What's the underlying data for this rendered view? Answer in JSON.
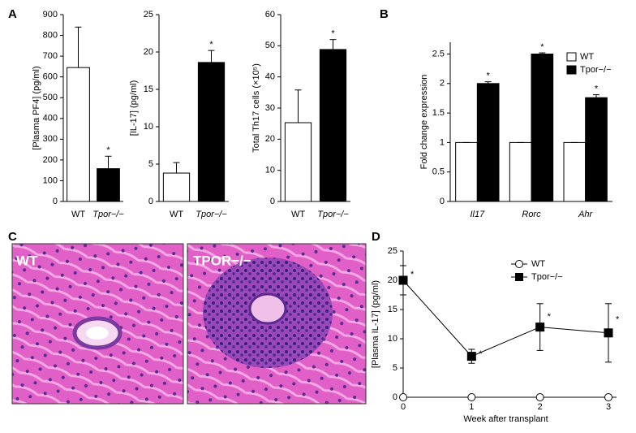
{
  "panel_labels": [
    "A",
    "B",
    "C",
    "D"
  ],
  "micrographs": {
    "labels": [
      "WT",
      "TPOR−/−"
    ]
  },
  "chart_data": [
    {
      "type": "bar",
      "y_label": "[Plasma PF4] (pg/ml)",
      "categories": [
        "WT",
        "Tpor−/−"
      ],
      "values": [
        645,
        158
      ],
      "errors": [
        195,
        60
      ],
      "colors": [
        "#ffffff",
        "#000000"
      ],
      "significant": [
        false,
        true
      ],
      "significance_mark": "*",
      "ylim": [
        0,
        900
      ],
      "yticks": [
        0,
        100,
        200,
        300,
        400,
        500,
        600,
        700,
        800,
        900
      ]
    },
    {
      "type": "bar",
      "y_label": "[IL-17] (pg/ml)",
      "categories": [
        "WT",
        "Tpor−/−"
      ],
      "values": [
        3.8,
        18.6
      ],
      "errors": [
        1.4,
        1.6
      ],
      "colors": [
        "#ffffff",
        "#000000"
      ],
      "significant": [
        false,
        true
      ],
      "significance_mark": "*",
      "ylim": [
        0,
        25
      ],
      "yticks": [
        0,
        5,
        10,
        15,
        20,
        25
      ]
    },
    {
      "type": "bar",
      "y_label": "Total Th17 cells (×10⁵)",
      "categories": [
        "WT",
        "Tpor−/−"
      ],
      "values": [
        25.3,
        48.8
      ],
      "errors": [
        10.5,
        3.2
      ],
      "colors": [
        "#ffffff",
        "#000000"
      ],
      "significant": [
        false,
        true
      ],
      "significance_mark": "*",
      "ylim": [
        0,
        60
      ],
      "yticks": [
        0,
        10,
        20,
        30,
        40,
        50,
        60
      ]
    },
    {
      "type": "grouped-bar",
      "y_label": "Fold change expression",
      "categories": [
        "Il17",
        "Rorc",
        "Ahr"
      ],
      "series": [
        {
          "name": "WT",
          "color": "#ffffff",
          "values": [
            1,
            1,
            1
          ],
          "errors": [
            0,
            0,
            0
          ],
          "significant": [
            false,
            false,
            false
          ]
        },
        {
          "name": "Tpor−/−",
          "color": "#000000",
          "values": [
            2.0,
            2.5,
            1.76
          ],
          "errors": [
            0.03,
            0.02,
            0.05
          ],
          "significant": [
            true,
            true,
            true
          ]
        }
      ],
      "significance_mark": "*",
      "ylim": [
        0,
        2.7
      ],
      "yticks": [
        0,
        0.5,
        1,
        1.5,
        2,
        2.5
      ]
    },
    {
      "type": "line",
      "x_label": "Week after transplant",
      "y_label": "[Plasma IL-17] (pg/ml)",
      "x": [
        0,
        1,
        2,
        3
      ],
      "series": [
        {
          "name": "WT",
          "color": "#ffffff",
          "marker": "circle",
          "values": [
            0,
            0,
            0,
            0
          ],
          "errors": [
            0,
            0,
            0,
            0
          ],
          "significant": [
            false,
            false,
            false,
            false
          ]
        },
        {
          "name": "Tpor−/−",
          "color": "#000000",
          "marker": "square",
          "values": [
            20,
            7,
            12,
            11
          ],
          "errors": [
            2.5,
            1.2,
            4,
            5
          ],
          "significant": [
            true,
            true,
            true,
            true
          ]
        }
      ],
      "significance_mark": "*",
      "xlim": [
        0,
        3
      ],
      "xticks": [
        0,
        1,
        2,
        3
      ],
      "ylim": [
        0,
        25
      ],
      "yticks": [
        0,
        5,
        10,
        15,
        20,
        25
      ]
    }
  ]
}
